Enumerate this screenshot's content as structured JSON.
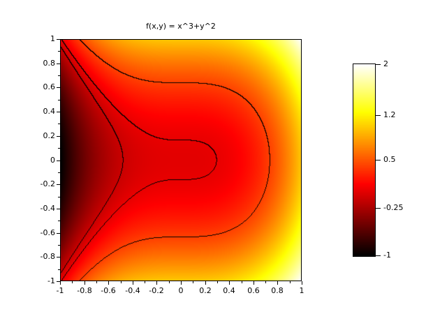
{
  "chart_data": {
    "type": "heatmap",
    "title": "f(x,y) = x^3+y^2",
    "formula": "x^3+y^2",
    "terms": [
      {
        "var": "x",
        "power": 3,
        "coef": 1
      },
      {
        "var": "y",
        "power": 2,
        "coef": 1
      }
    ],
    "x_range": [
      -1,
      1
    ],
    "y_range": [
      -1,
      1
    ],
    "z_range": [
      -1,
      2
    ],
    "x_tick_values": [
      -1,
      -0.8,
      -0.6,
      -0.4,
      -0.2,
      0,
      0.2,
      0.4,
      0.6,
      0.8,
      1
    ],
    "x_tick_labels": [
      "-1",
      "-0.8",
      "-0.6",
      "-0.4",
      "-0.2",
      "0",
      "0.2",
      "0.4",
      "0.6",
      "0.8",
      "1"
    ],
    "y_tick_values": [
      1,
      0.8,
      0.6,
      0.4,
      0.2,
      0,
      -0.2,
      -0.4,
      -0.6,
      -0.8,
      -1
    ],
    "y_tick_labels": [
      "1",
      "0.8",
      "0.6",
      "0.4",
      "0.2",
      "0",
      "-0.2",
      "-0.4",
      "-0.6",
      "-0.8",
      "-1"
    ],
    "minor_tick_step": 0.1,
    "grid": false,
    "legend": false,
    "contour_levels": [
      -0.11,
      0.027,
      0.41
    ],
    "contour_color": "#000000",
    "colormap": "hot",
    "colormap_stops": [
      {
        "t": 0.0,
        "color": "#000000"
      },
      {
        "t": 0.375,
        "color": "#ff0000"
      },
      {
        "t": 0.75,
        "color": "#ffff00"
      },
      {
        "t": 1.0,
        "color": "#ffffff"
      }
    ],
    "colorbar": {
      "tick_values": [
        2,
        1.2,
        0.5,
        -0.25,
        -1
      ],
      "tick_labels": [
        "2",
        "1.2",
        "0.5",
        "-0.25",
        "-1"
      ]
    }
  }
}
